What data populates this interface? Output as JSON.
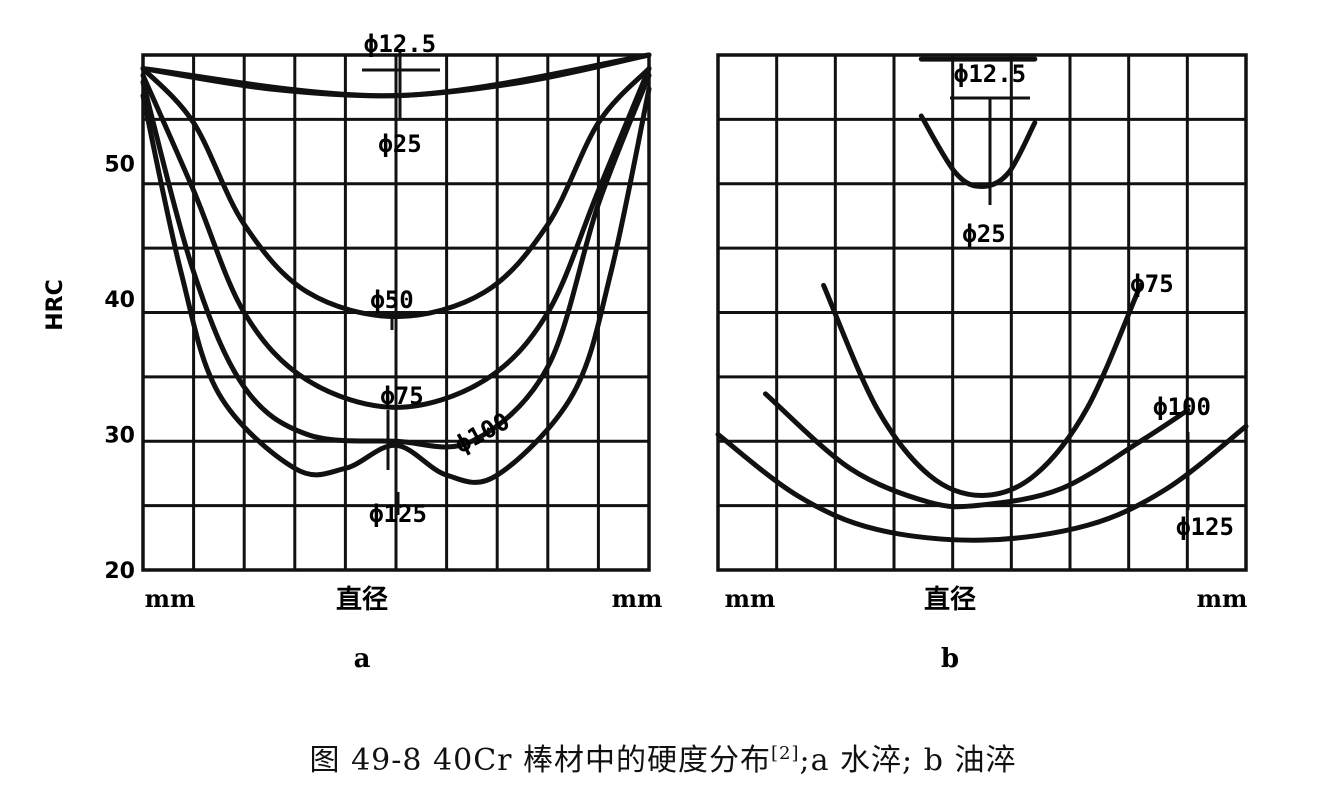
{
  "caption": {
    "prefix": "图 49-8   40Cr 棒材中的硬度分布",
    "ref": "[2]",
    "suffix": ";a 水淬; b 油淬"
  },
  "chart_data": [
    {
      "type": "line",
      "panel_label": "a",
      "xlabel": "直径",
      "x_unit_left": "mm",
      "x_unit_right": "mm",
      "ylabel": "HRC",
      "ylim": [
        20,
        58
      ],
      "y_ticks": [
        "20",
        "30",
        "40",
        "50"
      ],
      "x": [
        -1.0,
        -0.75,
        -0.5,
        -0.25,
        0.0,
        0.25,
        0.5,
        0.75,
        1.0
      ],
      "series": [
        {
          "name": "ϕ12.5",
          "label_text": "ϕ12.5",
          "points": [
            [
              -1.0,
              57
            ],
            [
              0.0,
              55
            ],
            [
              1.0,
              58
            ]
          ]
        },
        {
          "name": "ϕ25",
          "label_text": "ϕ25",
          "points": [
            [
              -1.0,
              57
            ],
            [
              -0.5,
              55.5
            ],
            [
              0.0,
              55
            ],
            [
              0.5,
              56
            ],
            [
              1.0,
              58
            ]
          ]
        },
        {
          "name": "ϕ50",
          "label_text": "ϕ50",
          "points": [
            [
              -1.0,
              57
            ],
            [
              -0.8,
              53
            ],
            [
              -0.6,
              45.5
            ],
            [
              -0.35,
              40.5
            ],
            [
              0.0,
              38.7
            ],
            [
              0.35,
              40.5
            ],
            [
              0.6,
              45.5
            ],
            [
              0.8,
              53
            ],
            [
              1.0,
              57
            ]
          ]
        },
        {
          "name": "ϕ75",
          "label_text": "ϕ75",
          "points": [
            [
              -1.0,
              56.5
            ],
            [
              -0.8,
              48
            ],
            [
              -0.6,
              39
            ],
            [
              -0.35,
              34
            ],
            [
              0.0,
              32
            ],
            [
              0.35,
              34
            ],
            [
              0.6,
              39
            ],
            [
              0.8,
              48
            ],
            [
              1.0,
              57
            ]
          ]
        },
        {
          "name": "ϕ100",
          "label_text": "ϕ100",
          "points": [
            [
              -1.0,
              56
            ],
            [
              -0.8,
              42
            ],
            [
              -0.6,
              33.5
            ],
            [
              -0.35,
              30
            ],
            [
              0.0,
              29.5
            ],
            [
              0.3,
              29.5
            ],
            [
              0.6,
              35
            ],
            [
              0.8,
              47
            ],
            [
              1.0,
              56.5
            ]
          ]
        },
        {
          "name": "ϕ125",
          "label_text": "ϕ125",
          "points": [
            [
              -1.0,
              55
            ],
            [
              -0.85,
              42
            ],
            [
              -0.7,
              33
            ],
            [
              -0.4,
              27.5
            ],
            [
              -0.2,
              27.5
            ],
            [
              0.0,
              29.2
            ],
            [
              0.2,
              27
            ],
            [
              0.4,
              27
            ],
            [
              0.7,
              33
            ],
            [
              0.85,
              42
            ],
            [
              1.0,
              55.5
            ]
          ]
        }
      ]
    },
    {
      "type": "line",
      "panel_label": "b",
      "xlabel": "直径",
      "x_unit_left": "mm",
      "x_unit_right": "mm",
      "ylabel": "",
      "ylim": [
        20,
        58
      ],
      "series": [
        {
          "name": "ϕ12.5",
          "label_text": "ϕ12.5",
          "points": [
            [
              -0.23,
              57.7
            ],
            [
              0.2,
              57.7
            ]
          ]
        },
        {
          "name": "ϕ25",
          "label_text": "ϕ25",
          "points": [
            [
              -0.23,
              53.5
            ],
            [
              -0.1,
              49.3
            ],
            [
              0.0,
              48.3
            ],
            [
              0.1,
              49.3
            ],
            [
              0.2,
              53
            ]
          ]
        },
        {
          "name": "ϕ75",
          "label_text": "ϕ75",
          "points": [
            [
              -0.6,
              41
            ],
            [
              -0.4,
              32
            ],
            [
              -0.2,
              27
            ],
            [
              0.0,
              25.5
            ],
            [
              0.2,
              27
            ],
            [
              0.4,
              32
            ],
            [
              0.6,
              41
            ]
          ]
        },
        {
          "name": "ϕ100",
          "label_text": "ϕ100",
          "points": [
            [
              -0.82,
              33
            ],
            [
              -0.5,
              27.5
            ],
            [
              -0.2,
              25
            ],
            [
              0.0,
              24.8
            ],
            [
              0.3,
              26
            ],
            [
              0.6,
              29.5
            ],
            [
              0.78,
              31.8
            ]
          ]
        },
        {
          "name": "ϕ125",
          "label_text": "ϕ125",
          "points": [
            [
              -1.0,
              30
            ],
            [
              -0.7,
              25.5
            ],
            [
              -0.4,
              23
            ],
            [
              0.0,
              22.2
            ],
            [
              0.4,
              23.3
            ],
            [
              0.7,
              26
            ],
            [
              1.0,
              30.6
            ]
          ]
        }
      ]
    }
  ]
}
